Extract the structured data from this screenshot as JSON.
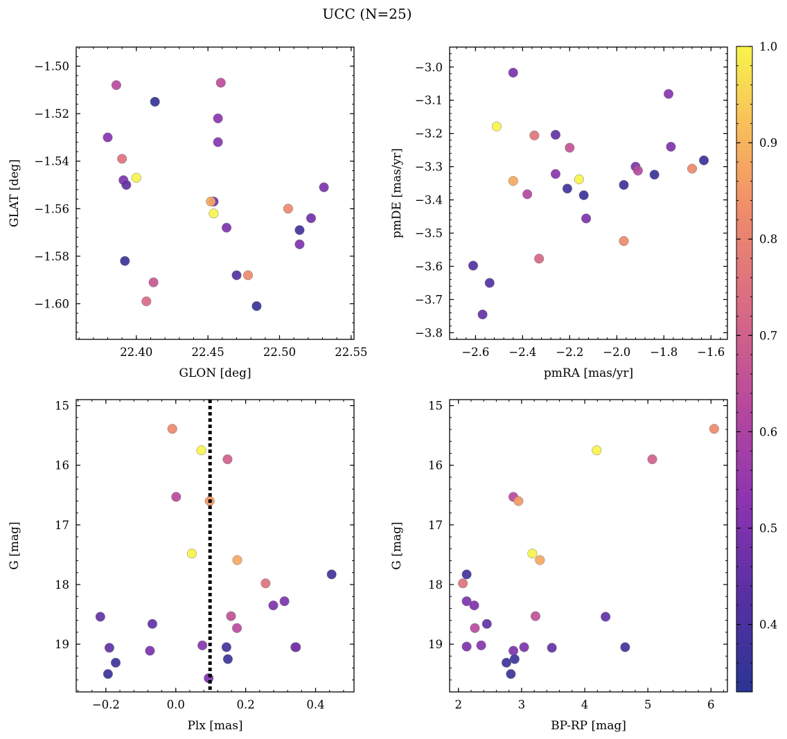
{
  "figure_title": "UCC (N=25)",
  "colorbar": {
    "range": [
      0.33,
      1.0
    ],
    "ticks": [
      0.4,
      0.5,
      0.6,
      0.7,
      0.8,
      0.9,
      1.0
    ],
    "tick_labels": [
      "0.4",
      "0.5",
      "0.6",
      "0.7",
      "0.8",
      "0.9",
      "1.0"
    ],
    "colormap": "plasma"
  },
  "chart_data": [
    {
      "type": "scatter",
      "title": "",
      "xlabel": "GLON [deg]",
      "ylabel": "GLAT [deg]",
      "xlim": [
        22.358,
        22.552
      ],
      "ylim": [
        -1.615,
        -1.492
      ],
      "xticks": [
        22.4,
        22.45,
        22.5,
        22.55
      ],
      "xtick_labels": [
        "22.40",
        "22.45",
        "22.50",
        "22.55"
      ],
      "yticks": [
        -1.6,
        -1.58,
        -1.56,
        -1.54,
        -1.52,
        -1.5
      ],
      "ytick_labels": [
        "−1.60",
        "−1.58",
        "−1.56",
        "−1.54",
        "−1.52",
        "−1.50"
      ],
      "y_inverted": false,
      "points": [
        {
          "x": 22.386,
          "y": -1.508,
          "c": 0.63
        },
        {
          "x": 22.413,
          "y": -1.515,
          "c": 0.35
        },
        {
          "x": 22.459,
          "y": -1.507,
          "c": 0.64
        },
        {
          "x": 22.457,
          "y": -1.522,
          "c": 0.53
        },
        {
          "x": 22.38,
          "y": -1.53,
          "c": 0.52
        },
        {
          "x": 22.457,
          "y": -1.532,
          "c": 0.52
        },
        {
          "x": 22.39,
          "y": -1.539,
          "c": 0.75
        },
        {
          "x": 22.4,
          "y": -1.547,
          "c": 1.0
        },
        {
          "x": 22.391,
          "y": -1.548,
          "c": 0.5
        },
        {
          "x": 22.393,
          "y": -1.55,
          "c": 0.45
        },
        {
          "x": 22.531,
          "y": -1.551,
          "c": 0.5
        },
        {
          "x": 22.454,
          "y": -1.557,
          "c": 0.48
        },
        {
          "x": 22.452,
          "y": -1.557,
          "c": 0.88
        },
        {
          "x": 22.454,
          "y": -1.562,
          "c": 1.0
        },
        {
          "x": 22.506,
          "y": -1.56,
          "c": 0.82
        },
        {
          "x": 22.522,
          "y": -1.564,
          "c": 0.48
        },
        {
          "x": 22.514,
          "y": -1.569,
          "c": 0.38
        },
        {
          "x": 22.463,
          "y": -1.568,
          "c": 0.5
        },
        {
          "x": 22.514,
          "y": -1.575,
          "c": 0.5
        },
        {
          "x": 22.392,
          "y": -1.582,
          "c": 0.37
        },
        {
          "x": 22.47,
          "y": -1.588,
          "c": 0.42
        },
        {
          "x": 22.478,
          "y": -1.588,
          "c": 0.82
        },
        {
          "x": 22.412,
          "y": -1.591,
          "c": 0.67
        },
        {
          "x": 22.407,
          "y": -1.599,
          "c": 0.73
        },
        {
          "x": 22.484,
          "y": -1.601,
          "c": 0.36
        }
      ]
    },
    {
      "type": "scatter",
      "title": "",
      "xlabel": "pmRA [mas/yr]",
      "ylabel": "pmDE [mas/yr]",
      "xlim": [
        -2.71,
        -1.53
      ],
      "ylim": [
        -3.82,
        -2.94
      ],
      "xticks": [
        -2.6,
        -2.4,
        -2.2,
        -2.0,
        -1.8,
        -1.6
      ],
      "xtick_labels": [
        "−2.6",
        "−2.4",
        "−2.2",
        "−2.0",
        "−1.8",
        "−1.6"
      ],
      "yticks": [
        -3.8,
        -3.7,
        -3.6,
        -3.5,
        -3.4,
        -3.3,
        -3.2,
        -3.1,
        -3.0
      ],
      "ytick_labels": [
        "−3.8",
        "−3.7",
        "−3.6",
        "−3.5",
        "−3.4",
        "−3.3",
        "−3.2",
        "−3.1",
        "−3.0"
      ],
      "y_inverted": false,
      "points": [
        {
          "x": -2.44,
          "y": -3.017,
          "c": 0.5
        },
        {
          "x": -1.78,
          "y": -3.081,
          "c": 0.52
        },
        {
          "x": -2.51,
          "y": -3.179,
          "c": 1.0
        },
        {
          "x": -2.35,
          "y": -3.206,
          "c": 0.76
        },
        {
          "x": -2.26,
          "y": -3.204,
          "c": 0.45
        },
        {
          "x": -1.77,
          "y": -3.24,
          "c": 0.5
        },
        {
          "x": -2.2,
          "y": -3.243,
          "c": 0.66
        },
        {
          "x": -1.92,
          "y": -3.3,
          "c": 0.5
        },
        {
          "x": -1.91,
          "y": -3.312,
          "c": 0.63
        },
        {
          "x": -1.68,
          "y": -3.306,
          "c": 0.82
        },
        {
          "x": -1.63,
          "y": -3.281,
          "c": 0.37
        },
        {
          "x": -2.26,
          "y": -3.322,
          "c": 0.52
        },
        {
          "x": -1.84,
          "y": -3.324,
          "c": 0.36
        },
        {
          "x": -2.16,
          "y": -3.338,
          "c": 1.0
        },
        {
          "x": -2.44,
          "y": -3.343,
          "c": 0.88
        },
        {
          "x": -1.97,
          "y": -3.355,
          "c": 0.37
        },
        {
          "x": -2.21,
          "y": -3.366,
          "c": 0.38
        },
        {
          "x": -2.38,
          "y": -3.383,
          "c": 0.62
        },
        {
          "x": -2.14,
          "y": -3.386,
          "c": 0.37
        },
        {
          "x": -2.13,
          "y": -3.456,
          "c": 0.5
        },
        {
          "x": -1.97,
          "y": -3.524,
          "c": 0.82
        },
        {
          "x": -2.33,
          "y": -3.577,
          "c": 0.72
        },
        {
          "x": -2.61,
          "y": -3.598,
          "c": 0.42
        },
        {
          "x": -2.54,
          "y": -3.65,
          "c": 0.42
        },
        {
          "x": -2.57,
          "y": -3.745,
          "c": 0.45
        }
      ]
    },
    {
      "type": "scatter",
      "title": "",
      "xlabel": "Plx [mas]",
      "ylabel": "G [mag]",
      "xlim": [
        -0.285,
        0.51
      ],
      "ylim": [
        19.8,
        14.9
      ],
      "xticks": [
        -0.2,
        0.0,
        0.2,
        0.4
      ],
      "xtick_labels": [
        "−0.2",
        "0.0",
        "0.2",
        "0.4"
      ],
      "yticks": [
        15,
        16,
        17,
        18,
        19
      ],
      "ytick_labels": [
        "15",
        "16",
        "17",
        "18",
        "19"
      ],
      "y_inverted": true,
      "vline": {
        "x": 0.098,
        "style": "dotted",
        "color": "#000000"
      },
      "points": [
        {
          "x": -0.01,
          "y": 15.39,
          "c": 0.82
        },
        {
          "x": 0.073,
          "y": 15.75,
          "c": 1.0
        },
        {
          "x": 0.148,
          "y": 15.9,
          "c": 0.7
        },
        {
          "x": 0.001,
          "y": 16.53,
          "c": 0.63
        },
        {
          "x": 0.097,
          "y": 16.6,
          "c": 0.85
        },
        {
          "x": 0.046,
          "y": 17.48,
          "c": 1.0
        },
        {
          "x": 0.176,
          "y": 17.59,
          "c": 0.88
        },
        {
          "x": 0.446,
          "y": 17.83,
          "c": 0.38
        },
        {
          "x": 0.257,
          "y": 17.98,
          "c": 0.75
        },
        {
          "x": 0.311,
          "y": 18.28,
          "c": 0.5
        },
        {
          "x": 0.279,
          "y": 18.35,
          "c": 0.5
        },
        {
          "x": 0.158,
          "y": 18.53,
          "c": 0.65
        },
        {
          "x": -0.216,
          "y": 18.54,
          "c": 0.45
        },
        {
          "x": -0.067,
          "y": 18.66,
          "c": 0.45
        },
        {
          "x": 0.175,
          "y": 18.73,
          "c": 0.63
        },
        {
          "x": 0.076,
          "y": 19.02,
          "c": 0.52
        },
        {
          "x": -0.19,
          "y": 19.06,
          "c": 0.45
        },
        {
          "x": 0.145,
          "y": 19.05,
          "c": 0.38
        },
        {
          "x": 0.342,
          "y": 19.05,
          "c": 0.45
        },
        {
          "x": 0.344,
          "y": 19.05,
          "c": 0.5
        },
        {
          "x": -0.074,
          "y": 19.11,
          "c": 0.5
        },
        {
          "x": 0.149,
          "y": 19.25,
          "c": 0.37
        },
        {
          "x": -0.172,
          "y": 19.31,
          "c": 0.37
        },
        {
          "x": -0.194,
          "y": 19.5,
          "c": 0.37
        },
        {
          "x": 0.094,
          "y": 19.57,
          "c": 0.5
        }
      ]
    },
    {
      "type": "scatter",
      "title": "",
      "xlabel": "BP-RP [mag]",
      "ylabel": "G [mag]",
      "xlim": [
        1.86,
        6.26
      ],
      "ylim": [
        19.8,
        14.9
      ],
      "xticks": [
        2,
        3,
        4,
        5,
        6
      ],
      "xtick_labels": [
        "2",
        "3",
        "4",
        "5",
        "6"
      ],
      "yticks": [
        15,
        16,
        17,
        18,
        19
      ],
      "ytick_labels": [
        "15",
        "16",
        "17",
        "18",
        "19"
      ],
      "y_inverted": true,
      "points": [
        {
          "x": 6.05,
          "y": 15.39,
          "c": 0.82
        },
        {
          "x": 4.19,
          "y": 15.75,
          "c": 1.0
        },
        {
          "x": 5.07,
          "y": 15.9,
          "c": 0.7
        },
        {
          "x": 2.87,
          "y": 16.53,
          "c": 0.63
        },
        {
          "x": 2.95,
          "y": 16.6,
          "c": 0.85
        },
        {
          "x": 3.17,
          "y": 17.48,
          "c": 1.0
        },
        {
          "x": 3.29,
          "y": 17.59,
          "c": 0.88
        },
        {
          "x": 2.13,
          "y": 17.83,
          "c": 0.38
        },
        {
          "x": 2.07,
          "y": 17.98,
          "c": 0.75
        },
        {
          "x": 2.13,
          "y": 18.28,
          "c": 0.5
        },
        {
          "x": 2.25,
          "y": 18.35,
          "c": 0.5
        },
        {
          "x": 3.22,
          "y": 18.53,
          "c": 0.65
        },
        {
          "x": 4.33,
          "y": 18.54,
          "c": 0.45
        },
        {
          "x": 2.45,
          "y": 18.66,
          "c": 0.45
        },
        {
          "x": 2.26,
          "y": 18.73,
          "c": 0.63
        },
        {
          "x": 2.36,
          "y": 19.02,
          "c": 0.52
        },
        {
          "x": 2.13,
          "y": 19.04,
          "c": 0.5
        },
        {
          "x": 3.04,
          "y": 19.05,
          "c": 0.5
        },
        {
          "x": 3.48,
          "y": 19.06,
          "c": 0.45
        },
        {
          "x": 4.64,
          "y": 19.05,
          "c": 0.38
        },
        {
          "x": 2.87,
          "y": 19.11,
          "c": 0.5
        },
        {
          "x": 2.89,
          "y": 19.25,
          "c": 0.37
        },
        {
          "x": 2.76,
          "y": 19.31,
          "c": 0.37
        },
        {
          "x": 2.83,
          "y": 19.5,
          "c": 0.37
        }
      ]
    }
  ]
}
